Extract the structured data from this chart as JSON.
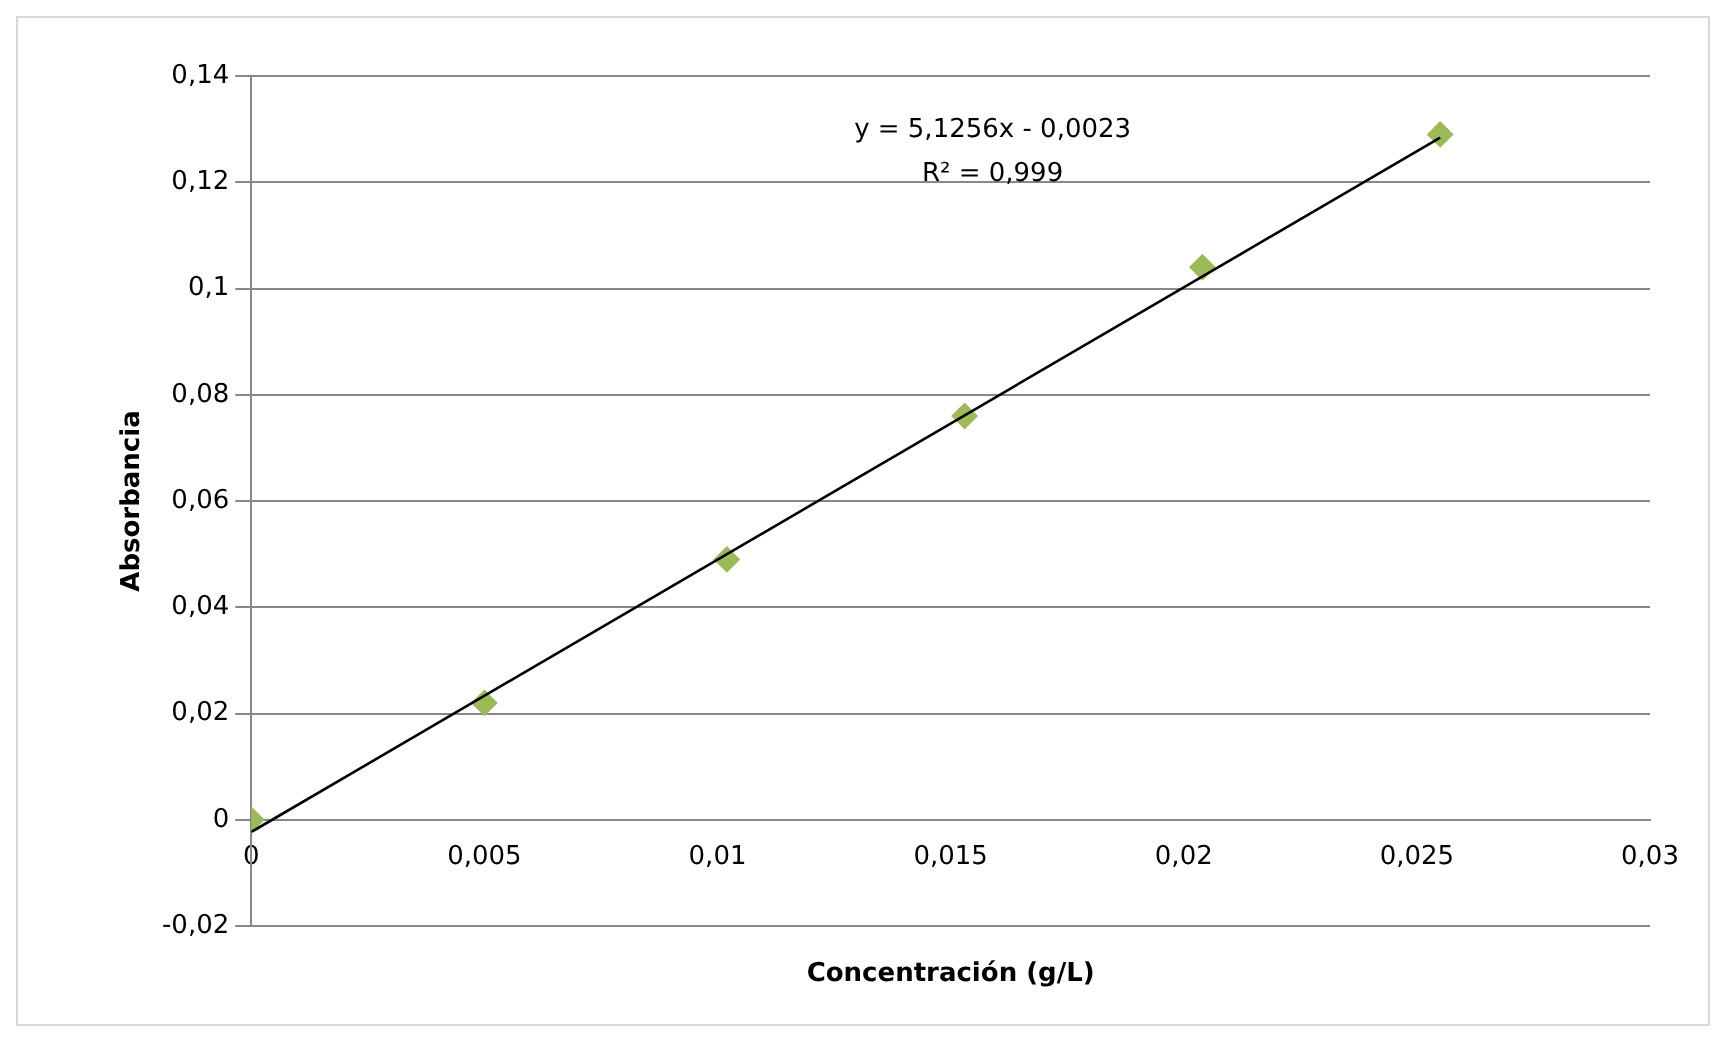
{
  "chart_data": {
    "type": "scatter",
    "xlabel": "Concentración (g/L)",
    "ylabel": "Absorbancia",
    "series": [
      {
        "type": "scatter",
        "color": "#9bbb59",
        "marker": "diamond",
        "x": [
          0,
          0.005,
          0.0102,
          0.0153,
          0.0204,
          0.0255
        ],
        "values": [
          0,
          0.022,
          0.049,
          0.076,
          0.104,
          0.129
        ]
      },
      {
        "type": "line",
        "color": "#000000",
        "marker": "none",
        "x": [
          0,
          0.0255
        ],
        "values": [
          -0.0023,
          0.1284
        ]
      }
    ],
    "xlim": [
      0,
      0.03
    ],
    "ylim": [
      -0.02,
      0.14
    ],
    "xticks": [
      0,
      {
        "value": 0.005,
        "label": "0,005"
      },
      {
        "value": 0.01,
        "label": "0,01"
      },
      {
        "value": 0.015,
        "label": "0,015"
      },
      {
        "value": 0.02,
        "label": "0,02"
      },
      {
        "value": 0.025,
        "label": "0,025"
      },
      {
        "value": 0.03,
        "label": "0,03"
      }
    ],
    "yticks": [
      {
        "value": -0.02,
        "label": "-0,02"
      },
      0,
      {
        "value": 0.02,
        "label": "0,02"
      },
      {
        "value": 0.04,
        "label": "0,04"
      },
      {
        "value": 0.06,
        "label": "0,06"
      },
      {
        "value": 0.08,
        "label": "0,08"
      },
      {
        "value": 0.1,
        "label": "0,1"
      },
      {
        "value": 0.12,
        "label": "0,12"
      },
      {
        "value": 0.14,
        "label": "0,14"
      }
    ],
    "grid": "y",
    "legend": false,
    "annotations": [
      "y = 5,1256x - 0,0023",
      "R² = 0,999"
    ]
  }
}
